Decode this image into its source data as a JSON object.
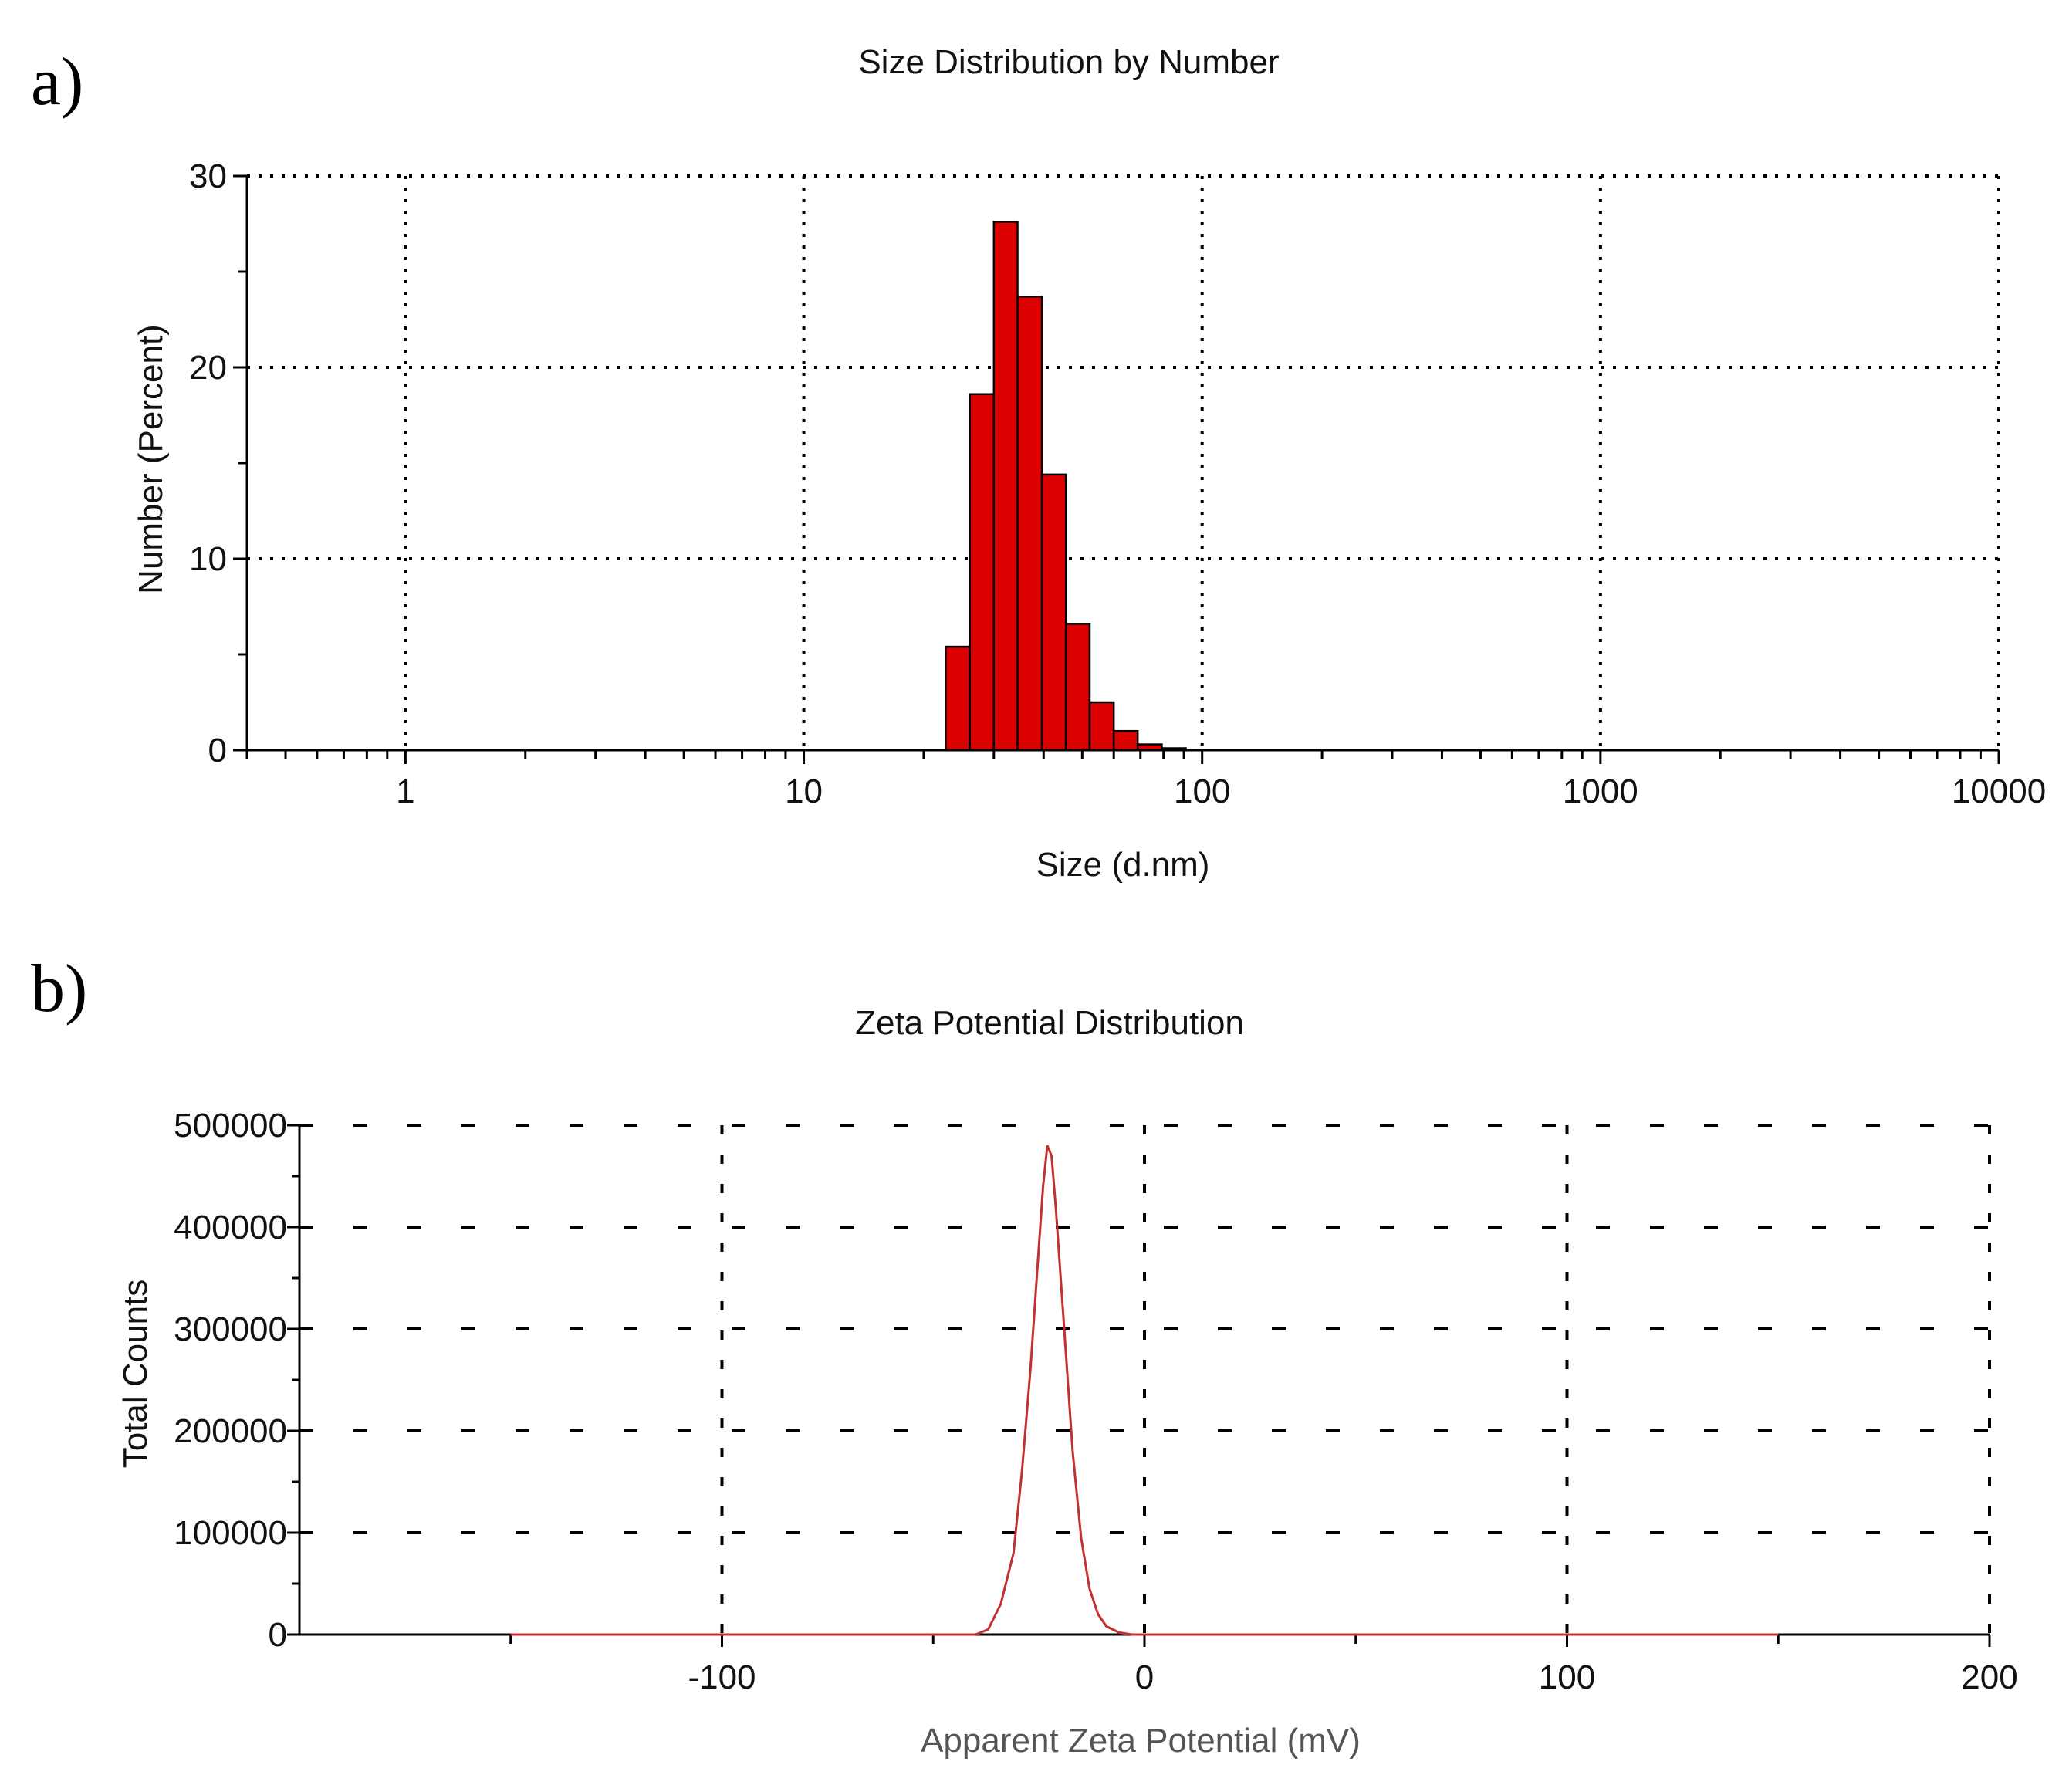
{
  "panels": {
    "a": {
      "letter": "a)"
    },
    "b": {
      "letter": "b)"
    }
  },
  "chart_data": [
    {
      "type": "bar",
      "title": "Size Distribution by Number",
      "xlabel": "Size (d.nm)",
      "ylabel": "Number (Percent)",
      "x_scale": "log",
      "xlim": [
        0.4,
        10000
      ],
      "ylim": [
        0,
        30
      ],
      "grid": true,
      "bar_color": "#dd0000",
      "x_ticks": [
        "1",
        "10",
        "100",
        "1000",
        "10000"
      ],
      "y_ticks": [
        "0",
        "10",
        "20",
        "30"
      ],
      "bins": [
        {
          "from": 22.7,
          "to": 26.1,
          "value": 5.4
        },
        {
          "from": 26.1,
          "to": 30.0,
          "value": 18.6
        },
        {
          "from": 30.0,
          "to": 34.4,
          "value": 27.6
        },
        {
          "from": 34.4,
          "to": 39.6,
          "value": 23.7
        },
        {
          "from": 39.6,
          "to": 45.5,
          "value": 14.4
        },
        {
          "from": 45.5,
          "to": 52.2,
          "value": 6.6
        },
        {
          "from": 52.2,
          "to": 60.0,
          "value": 2.5
        },
        {
          "from": 60.0,
          "to": 68.9,
          "value": 1.0
        },
        {
          "from": 68.9,
          "to": 79.2,
          "value": 0.3
        },
        {
          "from": 79.2,
          "to": 91.0,
          "value": 0.1
        }
      ]
    },
    {
      "type": "line",
      "title": "Zeta Potential Distribution",
      "xlabel": "Apparent Zeta Potential (mV)",
      "ylabel": "Total Counts",
      "xlim": [
        -200,
        200
      ],
      "ylim": [
        0,
        500000
      ],
      "grid": true,
      "line_color": "#c43030",
      "x_ticks": [
        "-100",
        "0",
        "100",
        "200"
      ],
      "y_ticks": [
        "0",
        "100000",
        "200000",
        "300000",
        "400000",
        "500000"
      ],
      "series": [
        {
          "x": [
            -150,
            -40,
            -37,
            -34,
            -31,
            -29,
            -27,
            -25,
            -24,
            -23,
            -22,
            -21,
            -19,
            -17,
            -15,
            -13,
            -11,
            -9,
            -6,
            -3,
            0,
            150
          ],
          "values": [
            0,
            0,
            5000,
            30000,
            80000,
            160000,
            260000,
            380000,
            440000,
            480000,
            470000,
            420000,
            300000,
            180000,
            95000,
            45000,
            20000,
            8000,
            2000,
            0,
            0,
            0
          ]
        }
      ]
    }
  ]
}
